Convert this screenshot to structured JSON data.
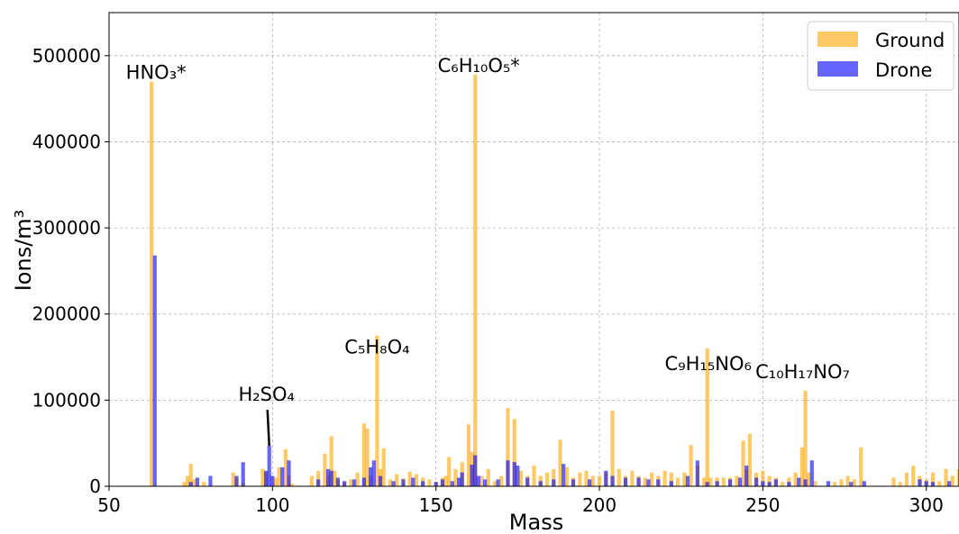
{
  "chart_data": {
    "type": "bar",
    "xlabel": "Mass",
    "ylabel": "Ions/m³",
    "xlim": [
      50,
      310
    ],
    "ylim": [
      0,
      550000
    ],
    "xticks": [
      50,
      100,
      150,
      200,
      250,
      300
    ],
    "yticks": [
      0,
      100000,
      200000,
      300000,
      400000,
      500000
    ],
    "grid": true,
    "legend_position": "top-right",
    "series": [
      {
        "name": "Ground",
        "color": "#ffa500",
        "x": [
          63,
          73,
          74,
          75,
          76,
          79,
          88,
          89,
          91,
          97,
          98,
          101,
          102,
          104,
          105,
          106,
          112,
          114,
          116,
          117,
          118,
          119,
          120,
          122,
          124,
          126,
          128,
          129,
          130,
          132,
          133,
          134,
          136,
          138,
          140,
          142,
          144,
          146,
          148,
          150,
          152,
          153,
          154,
          156,
          158,
          160,
          161,
          162,
          164,
          166,
          168,
          170,
          172,
          174,
          176,
          178,
          180,
          182,
          184,
          186,
          188,
          190,
          192,
          194,
          196,
          198,
          200,
          202,
          204,
          206,
          208,
          210,
          212,
          214,
          216,
          218,
          220,
          222,
          224,
          226,
          228,
          230,
          232,
          233,
          234,
          236,
          238,
          240,
          242,
          244,
          245,
          246,
          248,
          250,
          252,
          254,
          256,
          258,
          260,
          262,
          263,
          264,
          266,
          272,
          274,
          276,
          278,
          280,
          290,
          292,
          294,
          296,
          298,
          300,
          302,
          304,
          306,
          308,
          310
        ],
        "values": [
          470000,
          5000,
          12000,
          26000,
          8000,
          5000,
          16000,
          10000,
          4000,
          20000,
          16000,
          10000,
          22000,
          43000,
          12000,
          3000,
          12000,
          18000,
          38000,
          12000,
          58000,
          18000,
          8000,
          5000,
          8000,
          16000,
          73000,
          67000,
          12000,
          175000,
          20000,
          44000,
          8000,
          14000,
          9000,
          17000,
          14000,
          10000,
          8000,
          5000,
          10000,
          12000,
          34000,
          20000,
          28000,
          72000,
          40000,
          478000,
          12000,
          20000,
          6000,
          12000,
          91000,
          78000,
          18000,
          12000,
          24000,
          12000,
          16000,
          20000,
          54000,
          22000,
          10000,
          16000,
          18000,
          12000,
          12000,
          16000,
          88000,
          20000,
          12000,
          18000,
          12000,
          10000,
          16000,
          12000,
          18000,
          16000,
          10000,
          16000,
          48000,
          24000,
          10000,
          160000,
          10000,
          10000,
          10000,
          10000,
          12000,
          53000,
          20000,
          61000,
          16000,
          18000,
          12000,
          10000,
          5000,
          10000,
          16000,
          45000,
          111000,
          16000,
          6000,
          5000,
          8000,
          12000,
          8000,
          45000,
          10000,
          5000,
          16000,
          24000,
          12000,
          8000,
          16000,
          6000,
          20000,
          12000,
          20000
        ]
      },
      {
        "name": "Drone",
        "color": "#0000ff",
        "x": [
          64,
          75,
          77,
          81,
          89,
          91,
          98,
          99,
          100,
          103,
          105,
          114,
          117,
          118,
          120,
          122,
          125,
          128,
          130,
          131,
          133,
          137,
          140,
          143,
          146,
          150,
          152,
          155,
          157,
          158,
          161,
          162,
          163,
          165,
          169,
          172,
          174,
          175,
          178,
          182,
          186,
          189,
          192,
          197,
          202,
          204,
          208,
          212,
          215,
          218,
          222,
          227,
          230,
          233,
          236,
          240,
          243,
          245,
          248,
          250,
          252,
          254,
          258,
          261,
          263,
          265,
          270,
          277,
          281,
          298,
          300,
          302,
          307
        ],
        "values": [
          268000,
          5000,
          10000,
          12000,
          12000,
          28000,
          18000,
          47000,
          12000,
          22000,
          30000,
          8000,
          20000,
          18000,
          10000,
          6000,
          8000,
          10000,
          22000,
          30000,
          12000,
          6000,
          8000,
          10000,
          6000,
          5000,
          8000,
          6000,
          10000,
          16000,
          25000,
          36000,
          12000,
          8000,
          8000,
          30000,
          28000,
          24000,
          10000,
          6000,
          8000,
          26000,
          8000,
          8000,
          18000,
          12000,
          10000,
          10000,
          8000,
          8000,
          6000,
          12000,
          30000,
          5000,
          6000,
          8000,
          10000,
          24000,
          10000,
          6000,
          5000,
          8000,
          5000,
          10000,
          8000,
          30000,
          6000,
          5000,
          6000,
          8000,
          6000,
          5000,
          6000
        ]
      }
    ],
    "annotations": [
      {
        "text": "HNO₃*",
        "x": 63,
        "y": 470000
      },
      {
        "text": "C₆H₁₀O₅*",
        "x": 162,
        "y": 478000
      },
      {
        "text": "C₅H₈O₄",
        "x": 132,
        "y": 175000
      },
      {
        "text": "H₂SO₄",
        "x": 99,
        "y": 47000
      },
      {
        "text": "C₉H₁₅NO₆",
        "x": 233,
        "y": 160000
      },
      {
        "text": "C₁₀H₁₇NO₇",
        "x": 263,
        "y": 111000
      }
    ]
  }
}
